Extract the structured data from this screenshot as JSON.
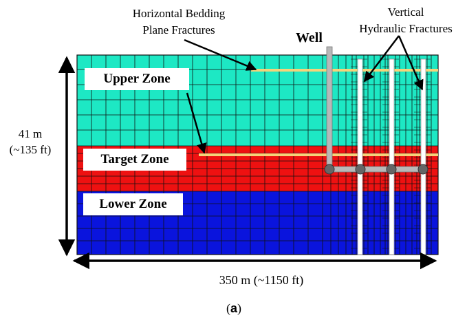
{
  "labels": {
    "bedding_fractures": [
      "Horizontal Bedding",
      "Plane Fractures"
    ],
    "vertical_fractures": [
      "Vertical",
      "Hydraulic Fractures"
    ],
    "well": "Well",
    "height": [
      "41 m",
      "(~135 ft)"
    ],
    "width": "350 m (~1150 ft)",
    "panel": "a"
  },
  "zones": [
    {
      "name": "Upper Zone",
      "color": "#1de8c4"
    },
    {
      "name": "Target Zone",
      "color": "#ee1111"
    },
    {
      "name": "Lower Zone",
      "color": "#0a14dd"
    }
  ],
  "colors": {
    "grid_line": "#101010",
    "bedding_fracture": "#f6d37a",
    "well_casing": "#b8b8b8",
    "well_node": "#666666",
    "arrow": "#000000"
  }
}
